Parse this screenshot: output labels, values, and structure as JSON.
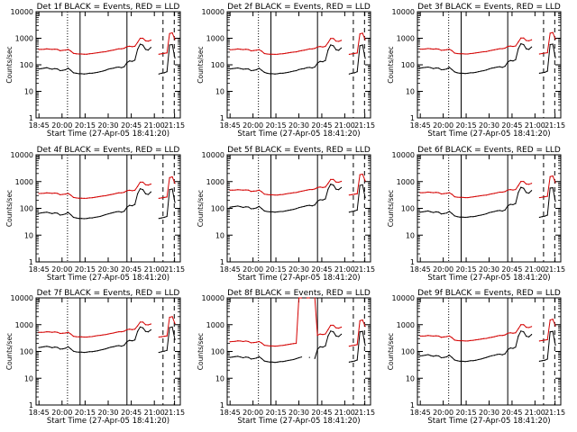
{
  "chart_data": {
    "type": "line",
    "y_scale": "log",
    "ylim": [
      1,
      10000
    ],
    "y_ticks": [
      1,
      10,
      100,
      1000,
      10000
    ],
    "y_tick_labels": [
      "1",
      "10",
      "100",
      "1000",
      "10000"
    ],
    "x_ticks": [
      "18:45",
      "20:00",
      "20:15",
      "20:30",
      "20:45",
      "21:00",
      "21:15"
    ],
    "xlabel": "Start Time (27-Apr-05 18:41:20)",
    "ylabel": "Counts/sec",
    "grid": false,
    "colors": {
      "events": "#000000",
      "lld": "#d40000"
    },
    "panels": [
      {
        "title": "Det 1f  BLACK = Events, RED = LLD",
        "flag": "",
        "events": [
          70,
          72,
          75,
          78,
          72,
          68,
          72,
          70,
          60,
          62,
          65,
          75,
          62,
          50,
          48,
          46,
          46,
          45,
          46,
          48,
          48,
          50,
          52,
          55,
          58,
          62,
          68,
          72,
          75,
          80,
          82,
          78,
          85,
          120,
          140,
          135,
          150,
          380,
          600,
          550,
          380,
          360,
          450,
          null,
          null,
          45,
          48,
          50,
          55,
          560,
          580,
          180,
          null
        ],
        "lld": [
          380,
          380,
          385,
          400,
          390,
          380,
          390,
          380,
          340,
          350,
          360,
          380,
          330,
          270,
          260,
          255,
          255,
          250,
          250,
          260,
          265,
          275,
          285,
          295,
          305,
          310,
          330,
          345,
          360,
          380,
          400,
          400,
          420,
          480,
          500,
          480,
          500,
          700,
          1000,
          1000,
          800,
          780,
          850,
          null,
          null,
          250,
          260,
          270,
          280,
          1500,
          1600,
          900,
          null
        ]
      },
      {
        "title": "Det 2f  BLACK = Events, RED = LLD",
        "flag": "",
        "events": [
          70,
          72,
          74,
          76,
          72,
          68,
          70,
          70,
          60,
          62,
          65,
          74,
          62,
          52,
          48,
          46,
          46,
          45,
          46,
          48,
          48,
          50,
          52,
          55,
          58,
          60,
          66,
          70,
          72,
          78,
          80,
          76,
          82,
          115,
          135,
          130,
          145,
          360,
          560,
          520,
          370,
          350,
          430,
          null,
          null,
          45,
          48,
          50,
          55,
          520,
          560,
          175,
          null
        ],
        "lld": [
          370,
          375,
          380,
          395,
          385,
          375,
          385,
          375,
          335,
          345,
          355,
          375,
          325,
          265,
          255,
          250,
          250,
          248,
          250,
          258,
          262,
          272,
          282,
          292,
          300,
          308,
          325,
          340,
          355,
          375,
          395,
          395,
          415,
          470,
          490,
          470,
          495,
          680,
          980,
          980,
          780,
          760,
          830,
          null,
          null,
          248,
          258,
          268,
          278,
          1450,
          1550,
          880,
          null
        ]
      },
      {
        "title": "Det 3f  BLACK = Events, RED = LLD",
        "flag": "",
        "events": [
          75,
          78,
          80,
          82,
          78,
          72,
          76,
          75,
          65,
          66,
          70,
          80,
          66,
          54,
          50,
          48,
          48,
          47,
          48,
          50,
          50,
          52,
          55,
          58,
          60,
          64,
          70,
          75,
          78,
          82,
          85,
          80,
          88,
          125,
          145,
          140,
          155,
          400,
          620,
          580,
          400,
          380,
          470,
          null,
          null,
          48,
          50,
          52,
          58,
          580,
          600,
          185,
          null
        ],
        "lld": [
          390,
          390,
          395,
          410,
          400,
          390,
          400,
          390,
          350,
          360,
          370,
          390,
          340,
          275,
          265,
          260,
          260,
          255,
          255,
          265,
          270,
          280,
          290,
          300,
          310,
          315,
          335,
          350,
          365,
          385,
          405,
          405,
          425,
          490,
          510,
          490,
          510,
          720,
          1020,
          1020,
          820,
          800,
          870,
          null,
          null,
          255,
          265,
          275,
          285,
          1550,
          1650,
          920,
          null
        ]
      },
      {
        "title": "Det 4f  BLACK = Events, RED = LLD",
        "flag": "",
        "events": [
          65,
          68,
          70,
          72,
          68,
          64,
          68,
          66,
          56,
          58,
          62,
          70,
          58,
          46,
          44,
          42,
          42,
          41,
          42,
          44,
          44,
          46,
          48,
          50,
          54,
          58,
          62,
          66,
          70,
          74,
          76,
          72,
          78,
          110,
          130,
          125,
          140,
          350,
          540,
          500,
          350,
          330,
          410,
          null,
          null,
          42,
          44,
          46,
          50,
          500,
          530,
          165,
          null
        ],
        "lld": [
          360,
          362,
          368,
          380,
          372,
          362,
          372,
          362,
          322,
          332,
          342,
          362,
          312,
          255,
          245,
          240,
          240,
          236,
          238,
          246,
          250,
          260,
          270,
          280,
          290,
          296,
          312,
          328,
          342,
          362,
          380,
          380,
          400,
          455,
          475,
          455,
          475,
          660,
          950,
          950,
          760,
          740,
          810,
          null,
          null,
          236,
          246,
          256,
          266,
          1400,
          1500,
          860,
          null
        ]
      },
      {
        "title": "Det 5f  BLACK = Events, RED = LLD",
        "flag": "",
        "events": [
          110,
          115,
          118,
          122,
          116,
          108,
          114,
          112,
          96,
          98,
          104,
          118,
          98,
          80,
          76,
          74,
          74,
          72,
          74,
          76,
          76,
          80,
          84,
          88,
          92,
          98,
          106,
          112,
          118,
          126,
          130,
          124,
          134,
          185,
          210,
          205,
          225,
          520,
          800,
          740,
          520,
          500,
          600,
          null,
          null,
          72,
          76,
          80,
          86,
          720,
          760,
          250,
          null
        ],
        "lld": [
          480,
          480,
          485,
          500,
          490,
          480,
          490,
          480,
          430,
          440,
          450,
          480,
          415,
          340,
          330,
          320,
          320,
          315,
          315,
          325,
          330,
          345,
          360,
          370,
          385,
          390,
          415,
          435,
          455,
          480,
          505,
          505,
          530,
          600,
          625,
          600,
          625,
          850,
          1200,
          1200,
          960,
          940,
          1020,
          null,
          null,
          315,
          325,
          340,
          350,
          1800,
          1900,
          1050,
          null
        ]
      },
      {
        "title": "Det 6f  BLACK = Events, RED = LLD",
        "flag": "",
        "events": [
          72,
          74,
          77,
          80,
          74,
          70,
          74,
          72,
          62,
          64,
          67,
          77,
          64,
          52,
          49,
          47,
          47,
          46,
          47,
          49,
          49,
          51,
          54,
          56,
          59,
          63,
          69,
          73,
          76,
          81,
          83,
          79,
          86,
          122,
          142,
          137,
          152,
          390,
          610,
          560,
          390,
          370,
          460,
          null,
          null,
          46,
          49,
          51,
          56,
          570,
          590,
          182,
          null
        ],
        "lld": [
          385,
          385,
          390,
          405,
          395,
          385,
          395,
          385,
          345,
          355,
          365,
          385,
          335,
          272,
          262,
          257,
          257,
          252,
          252,
          262,
          267,
          277,
          287,
          297,
          307,
          312,
          332,
          347,
          362,
          382,
          402,
          402,
          422,
          485,
          505,
          485,
          505,
          710,
          1010,
          1010,
          810,
          790,
          860,
          null,
          null,
          252,
          262,
          272,
          282,
          1520,
          1620,
          910,
          null
        ]
      },
      {
        "title": "Det 7f  BLACK = Events, RED = LLD",
        "flag": "",
        "events": [
          140,
          145,
          150,
          155,
          148,
          138,
          146,
          142,
          122,
          125,
          132,
          150,
          125,
          102,
          96,
          94,
          94,
          92,
          94,
          98,
          98,
          102,
          106,
          112,
          118,
          125,
          135,
          145,
          150,
          160,
          165,
          158,
          170,
          230,
          260,
          250,
          270,
          560,
          820,
          760,
          560,
          540,
          640,
          null,
          null,
          92,
          98,
          102,
          110,
          780,
          820,
          280,
          null
        ],
        "lld": [
          520,
          520,
          525,
          545,
          535,
          520,
          535,
          520,
          470,
          480,
          490,
          520,
          450,
          370,
          355,
          350,
          350,
          345,
          345,
          355,
          360,
          375,
          390,
          400,
          415,
          425,
          450,
          470,
          490,
          520,
          545,
          545,
          570,
          650,
          680,
          650,
          680,
          900,
          1250,
          1250,
          1000,
          980,
          1060,
          null,
          null,
          345,
          355,
          370,
          380,
          1900,
          2000,
          1100,
          null
        ]
      },
      {
        "title": "Det 8f  BLACK = Events, RED = LLD",
        "flag": "",
        "events": [
          60,
          62,
          64,
          66,
          62,
          58,
          62,
          60,
          52,
          54,
          57,
          64,
          54,
          44,
          42,
          40,
          40,
          39,
          40,
          42,
          42,
          44,
          46,
          48,
          50,
          54,
          58,
          62,
          null,
          null,
          60,
          null,
          55,
          120,
          150,
          145,
          160,
          380,
          580,
          540,
          380,
          360,
          440,
          null,
          null,
          40,
          42,
          44,
          48,
          540,
          560,
          170,
          null
        ],
        "lld": [
          230,
          235,
          240,
          250,
          245,
          235,
          245,
          235,
          210,
          215,
          222,
          235,
          205,
          170,
          165,
          160,
          160,
          158,
          160,
          165,
          168,
          175,
          182,
          190,
          196,
          200,
          10000,
          10000,
          null,
          10000,
          10000,
          null,
          10000,
          400,
          450,
          430,
          450,
          650,
          950,
          950,
          760,
          740,
          810,
          null,
          null,
          158,
          165,
          172,
          180,
          1400,
          1500,
          860,
          null
        ]
      },
      {
        "title": "Det 9f  BLACK = Events, RED = LLD",
        "flag": "",
        "events": [
          68,
          70,
          73,
          76,
          70,
          66,
          70,
          68,
          58,
          60,
          63,
          73,
          60,
          48,
          45,
          43,
          43,
          42,
          43,
          45,
          45,
          47,
          50,
          52,
          56,
          60,
          65,
          69,
          72,
          77,
          79,
          75,
          82,
          115,
          135,
          130,
          145,
          370,
          580,
          540,
          370,
          350,
          430,
          null,
          null,
          43,
          45,
          47,
          52,
          540,
          560,
          172,
          null
        ],
        "lld": [
          375,
          375,
          380,
          395,
          385,
          375,
          385,
          375,
          338,
          348,
          358,
          378,
          328,
          266,
          256,
          251,
          251,
          246,
          246,
          256,
          261,
          271,
          281,
          291,
          301,
          306,
          326,
          341,
          356,
          376,
          396,
          396,
          416,
          478,
          498,
          478,
          498,
          700,
          1000,
          1000,
          800,
          780,
          850,
          null,
          null,
          246,
          256,
          266,
          276,
          1500,
          1600,
          900,
          null
        ]
      }
    ]
  }
}
